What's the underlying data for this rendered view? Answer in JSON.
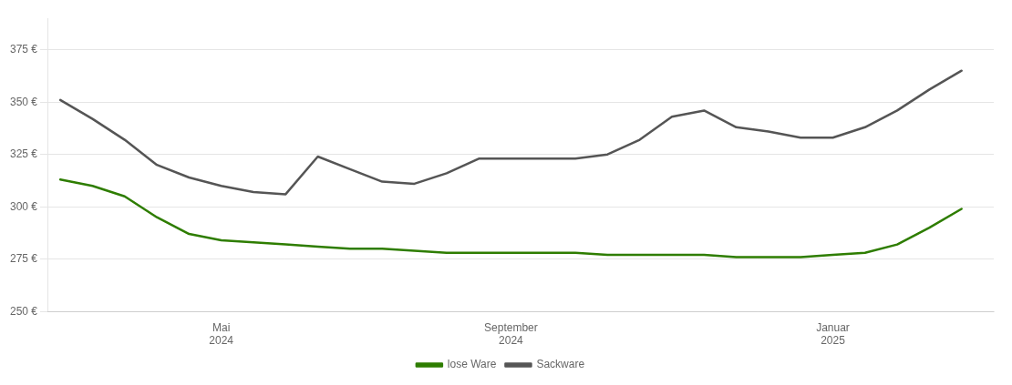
{
  "chart_data": {
    "type": "line",
    "x": [
      0,
      0.5,
      1,
      1.5,
      2,
      2.5,
      3,
      3.5,
      4,
      4.5,
      5,
      5.5,
      6,
      6.5,
      7,
      7.5,
      8,
      8.5,
      9,
      9.5,
      10,
      10.5,
      11,
      11.5,
      12,
      12.5,
      13,
      13.5,
      14
    ],
    "series": [
      {
        "name": "lose Ware",
        "color": "#2e7d00",
        "values": [
          313,
          310,
          305,
          295,
          287,
          284,
          283,
          282,
          281,
          280,
          280,
          279,
          278,
          278,
          278,
          278,
          278,
          277,
          277,
          277,
          277,
          276,
          276,
          276,
          277,
          278,
          282,
          290,
          299
        ]
      },
      {
        "name": "Sackware",
        "color": "#555555",
        "values": [
          351,
          342,
          332,
          320,
          314,
          310,
          307,
          306,
          324,
          318,
          312,
          311,
          316,
          323,
          323,
          323,
          323,
          325,
          332,
          343,
          346,
          338,
          336,
          333,
          333,
          338,
          346,
          356,
          365
        ]
      }
    ],
    "xlim": [
      -0.2,
      14.5
    ],
    "xticks": [
      {
        "value": 2.5,
        "label": "Mai\n2024"
      },
      {
        "value": 7,
        "label": "September\n2024"
      },
      {
        "value": 12,
        "label": "Januar\n2025"
      }
    ],
    "ylim": [
      250,
      390
    ],
    "yticks": [
      {
        "value": 250,
        "label": "250 €"
      },
      {
        "value": 275,
        "label": "275 €"
      },
      {
        "value": 300,
        "label": "300 €"
      },
      {
        "value": 325,
        "label": "325 €"
      },
      {
        "value": 350,
        "label": "350 €"
      },
      {
        "value": 375,
        "label": "375 €"
      }
    ],
    "grid": "y",
    "legend": "bottom"
  }
}
